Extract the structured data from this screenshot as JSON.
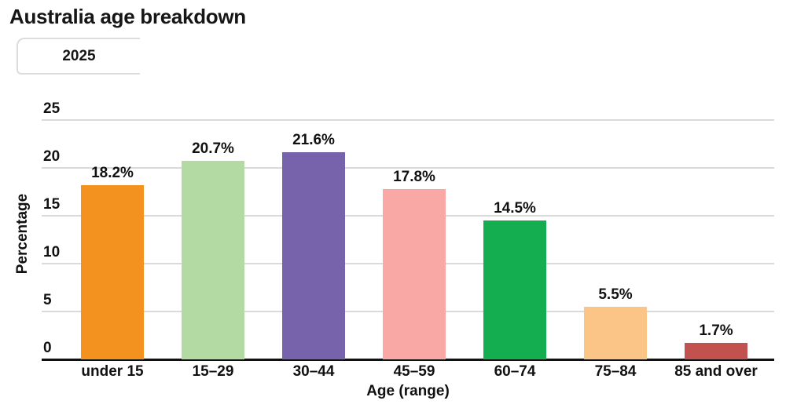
{
  "header": {
    "title": "Australia age breakdown",
    "year_chip": "2025"
  },
  "chart_data": {
    "type": "bar",
    "title": "Australia age breakdown",
    "legend": [
      "2025"
    ],
    "legend_position": "top-left",
    "categories": [
      "under 15",
      "15–29",
      "30–44",
      "45–59",
      "60–74",
      "75–84",
      "85 and over"
    ],
    "values": [
      18.2,
      20.7,
      21.6,
      17.8,
      14.5,
      5.5,
      1.7
    ],
    "value_labels": [
      "18.2%",
      "20.7%",
      "21.6%",
      "17.8%",
      "14.5%",
      "5.5%",
      "1.7%"
    ],
    "bar_colors": [
      "#F3921E",
      "#B3DAA2",
      "#7763AB",
      "#F9A8A6",
      "#14AD4F",
      "#FCC588",
      "#C25250"
    ],
    "xlabel": "Age (range)",
    "ylabel": "Percentage",
    "ylim": [
      0,
      25
    ],
    "yticks": [
      0,
      5,
      10,
      15,
      20,
      25
    ],
    "grid": true,
    "colors": {
      "gridline": "#dadada",
      "baseline": "#111111",
      "text": "#111111",
      "chip_border": "#dcdcdc",
      "background": "#ffffff"
    }
  }
}
